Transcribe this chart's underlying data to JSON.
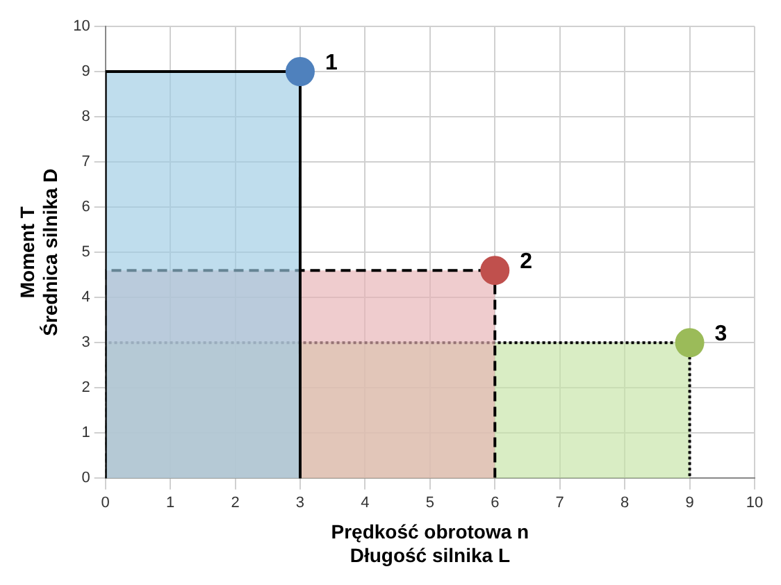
{
  "chart_data": {
    "type": "scatter",
    "xlabel": "Prędkość obrotowa n\nDługość silnika L",
    "ylabel": "Moment T\nŚrednica silnika D",
    "xlim": [
      0,
      10
    ],
    "xticks": [
      0,
      1,
      2,
      3,
      4,
      5,
      6,
      7,
      8,
      9,
      10
    ],
    "ylim": [
      0,
      10
    ],
    "yticks": [
      0,
      1,
      2,
      3,
      4,
      5,
      6,
      7,
      8,
      9,
      10
    ],
    "grid": true,
    "legend": false,
    "series": [
      {
        "type": "area",
        "color": "#9dcbe3",
        "x": [
          0,
          0,
          3,
          3
        ],
        "values": [
          0,
          9,
          9,
          0
        ],
        "line_style": "solid",
        "marker": "none"
      },
      {
        "type": "area",
        "color": "#e6b0b4",
        "x": [
          0,
          0,
          6,
          6
        ],
        "values": [
          0,
          4.6,
          4.6,
          0
        ],
        "line_style": "dashed",
        "marker": "none"
      },
      {
        "type": "area",
        "color": "#c5e3a5",
        "x": [
          0,
          0,
          9,
          9
        ],
        "values": [
          0,
          3,
          3,
          0
        ],
        "line_style": "dotted",
        "marker": "none"
      },
      {
        "name": "1",
        "color": "#4f81bd",
        "x": [
          3
        ],
        "values": [
          9
        ],
        "marker": "circle"
      },
      {
        "name": "2",
        "color": "#c0504d",
        "x": [
          6
        ],
        "values": [
          4.6
        ],
        "marker": "circle"
      },
      {
        "name": "3",
        "color": "#9bbb59",
        "x": [
          9
        ],
        "values": [
          3
        ],
        "marker": "circle"
      }
    ]
  }
}
